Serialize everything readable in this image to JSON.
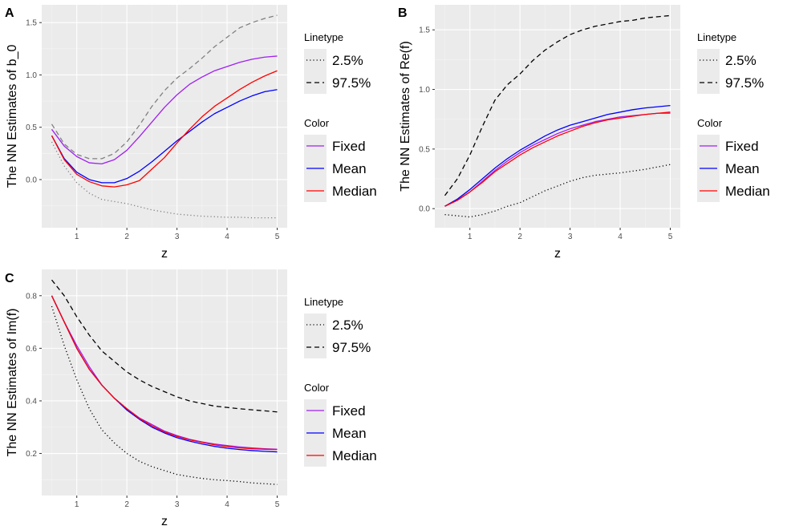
{
  "figure": {
    "x_title": "z"
  },
  "legend": {
    "linetype_title": "Linetype",
    "linetype_items": [
      {
        "label": "2.5%",
        "dash": "dotted"
      },
      {
        "label": "97.5%",
        "dash": "dashed"
      }
    ],
    "color_title": "Color",
    "color_items": [
      {
        "label": "Fixed",
        "color": "#a020f0"
      },
      {
        "label": "Mean",
        "color": "#0000ff"
      },
      {
        "label": "Median",
        "color": "#ff0000"
      }
    ]
  },
  "chart_data": [
    {
      "panel": "A",
      "type": "line",
      "title": "",
      "xlabel": "z",
      "ylabel": "The NN Estimates of b_0",
      "xlim": [
        0.3,
        5.2
      ],
      "ylim": [
        -0.46,
        1.67
      ],
      "xticks": [
        1,
        2,
        3,
        4,
        5
      ],
      "yticks": [
        0.0,
        0.5,
        1.0,
        1.5
      ],
      "ytick_labels": [
        "0.0",
        "0.5",
        "1.0",
        "1.5"
      ],
      "grid": true,
      "x": [
        0.5,
        0.75,
        1.0,
        1.25,
        1.5,
        1.75,
        2.0,
        2.25,
        2.5,
        2.75,
        3.0,
        3.25,
        3.5,
        3.75,
        4.0,
        4.25,
        4.5,
        4.75,
        5.0
      ],
      "series": [
        {
          "name": "Fixed",
          "linetype": "solid",
          "color": "#a020f0",
          "values": [
            0.48,
            0.32,
            0.22,
            0.16,
            0.15,
            0.19,
            0.28,
            0.41,
            0.55,
            0.69,
            0.81,
            0.91,
            0.98,
            1.04,
            1.08,
            1.12,
            1.15,
            1.17,
            1.18
          ]
        },
        {
          "name": "Mean",
          "linetype": "solid",
          "color": "#0000ff",
          "values": [
            0.42,
            0.2,
            0.07,
            0.0,
            -0.03,
            -0.03,
            0.01,
            0.08,
            0.17,
            0.27,
            0.37,
            0.46,
            0.55,
            0.63,
            0.69,
            0.75,
            0.8,
            0.84,
            0.86
          ]
        },
        {
          "name": "Median",
          "linetype": "solid",
          "color": "#ff0000",
          "values": [
            0.42,
            0.19,
            0.05,
            -0.02,
            -0.06,
            -0.07,
            -0.05,
            -0.01,
            0.1,
            0.21,
            0.35,
            0.48,
            0.6,
            0.7,
            0.78,
            0.86,
            0.93,
            0.99,
            1.04
          ]
        },
        {
          "name": "2.5%",
          "linetype": "dotted",
          "color": "#808080",
          "values": [
            0.36,
            0.13,
            -0.03,
            -0.13,
            -0.19,
            -0.21,
            -0.23,
            -0.26,
            -0.29,
            -0.31,
            -0.33,
            -0.34,
            -0.35,
            -0.355,
            -0.36,
            -0.36,
            -0.365,
            -0.365,
            -0.365
          ]
        },
        {
          "name": "97.5%",
          "linetype": "dashed",
          "color": "#808080",
          "values": [
            0.53,
            0.34,
            0.24,
            0.2,
            0.2,
            0.25,
            0.36,
            0.52,
            0.7,
            0.85,
            0.97,
            1.06,
            1.16,
            1.27,
            1.36,
            1.45,
            1.5,
            1.54,
            1.57
          ]
        }
      ]
    },
    {
      "panel": "B",
      "type": "line",
      "title": "",
      "xlabel": "z",
      "ylabel": "The NN Estimates of Re(f)",
      "xlim": [
        0.3,
        5.2
      ],
      "ylim": [
        -0.16,
        1.71
      ],
      "xticks": [
        1,
        2,
        3,
        4,
        5
      ],
      "yticks": [
        0.0,
        0.5,
        1.0,
        1.5
      ],
      "ytick_labels": [
        "0.0",
        "0.5",
        "1.0",
        "1.5"
      ],
      "grid": true,
      "x": [
        0.5,
        0.75,
        1.0,
        1.25,
        1.5,
        1.75,
        2.0,
        2.25,
        2.5,
        2.75,
        3.0,
        3.25,
        3.5,
        3.75,
        4.0,
        4.25,
        4.5,
        4.75,
        5.0
      ],
      "series": [
        {
          "name": "Fixed",
          "linetype": "solid",
          "color": "#a020f0",
          "values": [
            0.02,
            0.07,
            0.14,
            0.23,
            0.32,
            0.4,
            0.47,
            0.53,
            0.58,
            0.63,
            0.67,
            0.7,
            0.73,
            0.75,
            0.77,
            0.78,
            0.79,
            0.8,
            0.8
          ]
        },
        {
          "name": "Mean",
          "linetype": "solid",
          "color": "#0000ff",
          "values": [
            0.02,
            0.08,
            0.16,
            0.25,
            0.34,
            0.42,
            0.49,
            0.55,
            0.61,
            0.66,
            0.7,
            0.73,
            0.76,
            0.79,
            0.81,
            0.83,
            0.845,
            0.855,
            0.865
          ]
        },
        {
          "name": "Median",
          "linetype": "solid",
          "color": "#ff0000",
          "values": [
            0.02,
            0.07,
            0.14,
            0.22,
            0.31,
            0.38,
            0.45,
            0.51,
            0.56,
            0.61,
            0.65,
            0.69,
            0.72,
            0.745,
            0.76,
            0.775,
            0.79,
            0.8,
            0.81
          ]
        },
        {
          "name": "2.5%",
          "linetype": "dotted",
          "color": "#000000",
          "values": [
            -0.05,
            -0.06,
            -0.07,
            -0.05,
            -0.02,
            0.02,
            0.05,
            0.1,
            0.15,
            0.19,
            0.23,
            0.26,
            0.28,
            0.29,
            0.3,
            0.315,
            0.33,
            0.35,
            0.37
          ]
        },
        {
          "name": "97.5%",
          "linetype": "dashed",
          "color": "#000000",
          "values": [
            0.11,
            0.25,
            0.45,
            0.69,
            0.91,
            1.04,
            1.13,
            1.24,
            1.33,
            1.4,
            1.46,
            1.5,
            1.53,
            1.55,
            1.57,
            1.58,
            1.6,
            1.61,
            1.62
          ]
        }
      ]
    },
    {
      "panel": "C",
      "type": "line",
      "title": "",
      "xlabel": "z",
      "ylabel": "The NN Estimates of Im(f)",
      "xlim": [
        0.3,
        5.2
      ],
      "ylim": [
        0.04,
        0.9
      ],
      "xticks": [
        1,
        2,
        3,
        4,
        5
      ],
      "yticks": [
        0.2,
        0.4,
        0.6,
        0.8
      ],
      "ytick_labels": [
        "0.2",
        "0.4",
        "0.6",
        "0.8"
      ],
      "grid": true,
      "x": [
        0.5,
        0.75,
        1.0,
        1.25,
        1.5,
        1.75,
        2.0,
        2.25,
        2.5,
        2.75,
        3.0,
        3.25,
        3.5,
        3.75,
        4.0,
        4.25,
        4.5,
        4.75,
        5.0
      ],
      "series": [
        {
          "name": "Fixed",
          "linetype": "solid",
          "color": "#a020f0",
          "values": [
            0.8,
            0.7,
            0.61,
            0.53,
            0.46,
            0.41,
            0.37,
            0.335,
            0.31,
            0.285,
            0.268,
            0.254,
            0.244,
            0.236,
            0.23,
            0.225,
            0.221,
            0.218,
            0.216
          ]
        },
        {
          "name": "Mean",
          "linetype": "solid",
          "color": "#0000ff",
          "values": [
            0.8,
            0.7,
            0.6,
            0.52,
            0.46,
            0.41,
            0.365,
            0.33,
            0.3,
            0.278,
            0.26,
            0.247,
            0.236,
            0.227,
            0.22,
            0.215,
            0.211,
            0.208,
            0.206
          ]
        },
        {
          "name": "Median",
          "linetype": "solid",
          "color": "#ff0000",
          "values": [
            0.8,
            0.7,
            0.6,
            0.52,
            0.46,
            0.41,
            0.37,
            0.333,
            0.305,
            0.282,
            0.265,
            0.252,
            0.242,
            0.233,
            0.226,
            0.221,
            0.218,
            0.216,
            0.215
          ]
        },
        {
          "name": "2.5%",
          "linetype": "dotted",
          "color": "#000000",
          "values": [
            0.76,
            0.61,
            0.48,
            0.37,
            0.29,
            0.24,
            0.2,
            0.17,
            0.15,
            0.135,
            0.12,
            0.112,
            0.105,
            0.1,
            0.097,
            0.093,
            0.088,
            0.085,
            0.082
          ]
        },
        {
          "name": "97.5%",
          "linetype": "dashed",
          "color": "#000000",
          "values": [
            0.86,
            0.8,
            0.72,
            0.65,
            0.59,
            0.55,
            0.51,
            0.48,
            0.455,
            0.435,
            0.415,
            0.4,
            0.39,
            0.38,
            0.375,
            0.37,
            0.366,
            0.362,
            0.358
          ]
        }
      ]
    }
  ]
}
